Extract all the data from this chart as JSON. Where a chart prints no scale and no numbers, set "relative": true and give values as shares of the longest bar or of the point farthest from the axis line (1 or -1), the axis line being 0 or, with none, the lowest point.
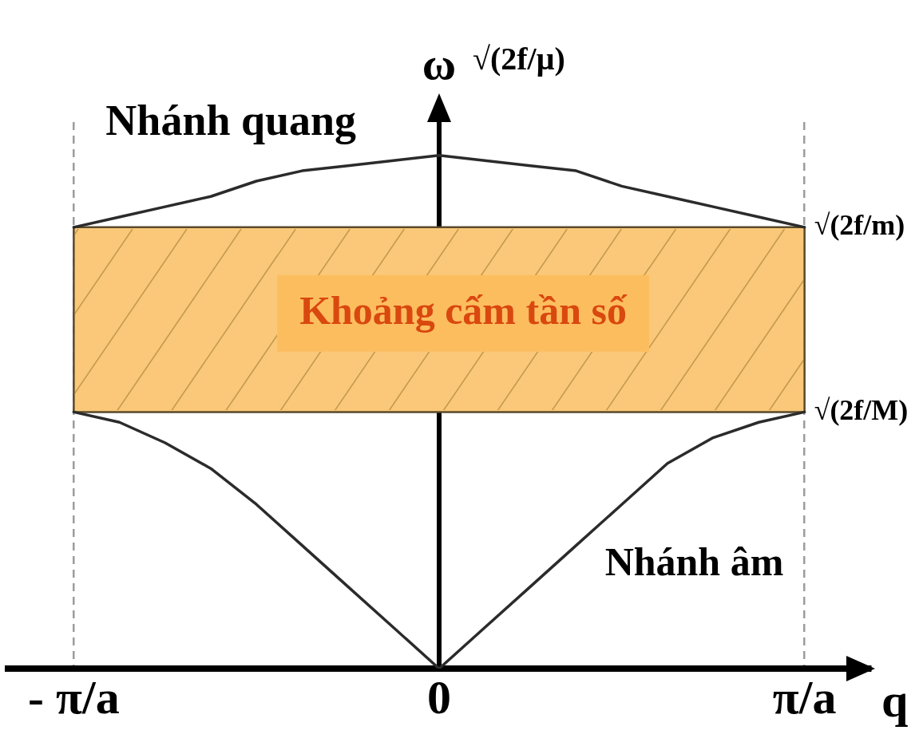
{
  "chart_data": {
    "type": "line",
    "xlabel": "q",
    "ylabel": "ω",
    "categories": [
      "- π/a",
      null,
      null,
      null,
      null,
      null,
      null,
      null,
      "0",
      null,
      null,
      null,
      null,
      null,
      null,
      null,
      "π/a"
    ],
    "series": [
      {
        "name": "Nhánh quang",
        "color": "#2b2b2b",
        "values": [
          0.86,
          0.88,
          0.9,
          0.92,
          0.95,
          0.97,
          0.98,
          0.99,
          1,
          0.99,
          0.98,
          0.97,
          0.94,
          0.92,
          0.9,
          0.88,
          0.86
        ]
      },
      {
        "name": "Nhánh âm",
        "color": "#2b2b2b",
        "values": [
          0.5,
          0.48,
          0.44,
          0.39,
          0.32,
          0.24,
          0.16,
          0.08,
          0,
          0.08,
          0.16,
          0.24,
          0.32,
          0.4,
          0.45,
          0.48,
          0.5
        ]
      }
    ],
    "relative": true,
    "bands": [
      {
        "axis": "y",
        "from": 0.5,
        "to": 0.86,
        "label": "Khoảng cấm tần số",
        "color": "#fac878"
      }
    ],
    "annotations": [
      {
        "text": "√(2f/μ)",
        "x": "0",
        "y": 1
      },
      {
        "text": "√(2f/m)",
        "x": "π/a",
        "y": 0.86
      },
      {
        "text": "√(2f/M)",
        "x": "π/a",
        "y": 0.5
      }
    ],
    "grid": "x",
    "legend": false,
    "marker": "none",
    "line_style": "solid"
  }
}
